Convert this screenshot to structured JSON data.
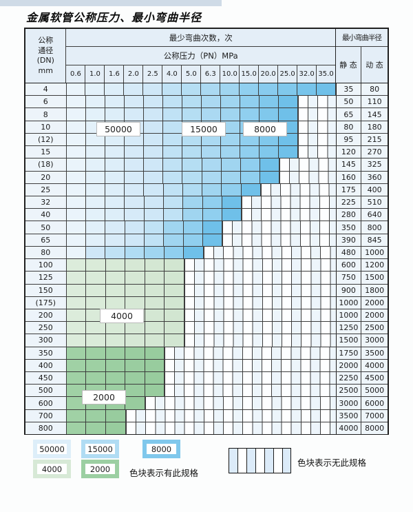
{
  "title": "金属软管公称压力、最小弯曲半径",
  "table": {
    "header": {
      "dn_lines": [
        "公称",
        "通径",
        "(DN)",
        "mm"
      ],
      "bend_cycles": "最少弯曲次数，次",
      "pressure": "公称压力（PN）MPa",
      "radius": "最小弯曲半径",
      "static": "静 态",
      "dynamic": "动 态",
      "pressure_cols": [
        "0.6",
        "1.0",
        "1.6",
        "2.0",
        "2.5",
        "4.0",
        "5.0",
        "6.3",
        "10.0",
        "15.0",
        "20.0",
        "25.0",
        "32.0",
        "35.0"
      ]
    },
    "rows": [
      {
        "dn": "4",
        "bands": [
          [
            "band_50000",
            5
          ],
          [
            "band_15000",
            4
          ],
          [
            "band_8000",
            5
          ]
        ],
        "static": "35",
        "dynamic": "80"
      },
      {
        "dn": "6",
        "bands": [
          [
            "band_50000",
            5
          ],
          [
            "band_15000",
            4
          ],
          [
            "band_8000",
            3
          ]
        ],
        "static": "50",
        "dynamic": "110"
      },
      {
        "dn": "8",
        "bands": [
          [
            "band_50000",
            5
          ],
          [
            "band_15000",
            4
          ],
          [
            "band_8000",
            3
          ]
        ],
        "static": "65",
        "dynamic": "145"
      },
      {
        "dn": "10",
        "bands": [
          [
            "band_50000",
            5
          ],
          [
            "band_15000",
            4
          ],
          [
            "band_8000",
            3
          ]
        ],
        "static": "80",
        "dynamic": "180"
      },
      {
        "dn": "(12)",
        "bands": [
          [
            "band_50000",
            5
          ],
          [
            "band_15000",
            4
          ],
          [
            "band_8000",
            3
          ]
        ],
        "static": "95",
        "dynamic": "215"
      },
      {
        "dn": "15",
        "bands": [
          [
            "band_50000",
            5
          ],
          [
            "band_15000",
            4
          ],
          [
            "band_8000",
            3
          ]
        ],
        "static": "120",
        "dynamic": "270"
      },
      {
        "dn": "(18)",
        "bands": [
          [
            "band_50000",
            5
          ],
          [
            "band_15000",
            4
          ],
          [
            "band_8000",
            2
          ]
        ],
        "static": "145",
        "dynamic": "325"
      },
      {
        "dn": "20",
        "bands": [
          [
            "band_50000",
            5
          ],
          [
            "band_15000",
            4
          ],
          [
            "band_8000",
            2
          ]
        ],
        "static": "160",
        "dynamic": "360"
      },
      {
        "dn": "25",
        "bands": [
          [
            "band_50000",
            5
          ],
          [
            "band_15000",
            3
          ],
          [
            "band_8000",
            2
          ]
        ],
        "static": "175",
        "dynamic": "400"
      },
      {
        "dn": "32",
        "bands": [
          [
            "band_50000",
            5
          ],
          [
            "band_15000",
            2
          ],
          [
            "band_8000",
            2
          ]
        ],
        "static": "225",
        "dynamic": "510"
      },
      {
        "dn": "40",
        "bands": [
          [
            "band_50000",
            5
          ],
          [
            "band_15000",
            2
          ],
          [
            "band_8000",
            2
          ]
        ],
        "static": "280",
        "dynamic": "640"
      },
      {
        "dn": "50",
        "bands": [
          [
            "band_50000",
            4
          ],
          [
            "band_15000",
            2
          ],
          [
            "band_8000",
            2
          ]
        ],
        "static": "350",
        "dynamic": "800"
      },
      {
        "dn": "65",
        "bands": [
          [
            "band_50000",
            4
          ],
          [
            "band_15000",
            2
          ],
          [
            "band_8000",
            2
          ]
        ],
        "static": "390",
        "dynamic": "845"
      },
      {
        "dn": "80",
        "bands": [
          [
            "band_50000",
            2
          ],
          [
            "band_15000",
            3
          ],
          [
            "band_8000",
            2
          ]
        ],
        "static": "480",
        "dynamic": "1000"
      },
      {
        "dn": "100",
        "bands": [
          [
            "band_4000",
            6
          ]
        ],
        "static": "600",
        "dynamic": "1200"
      },
      {
        "dn": "125",
        "bands": [
          [
            "band_4000",
            6
          ]
        ],
        "static": "750",
        "dynamic": "1500"
      },
      {
        "dn": "150",
        "bands": [
          [
            "band_4000",
            6
          ]
        ],
        "static": "900",
        "dynamic": "1800"
      },
      {
        "dn": "(175)",
        "bands": [
          [
            "band_4000",
            6
          ]
        ],
        "static": "1000",
        "dynamic": "2000"
      },
      {
        "dn": "200",
        "bands": [
          [
            "band_4000",
            6
          ]
        ],
        "static": "1000",
        "dynamic": "2000"
      },
      {
        "dn": "250",
        "bands": [
          [
            "band_4000",
            6
          ]
        ],
        "static": "1250",
        "dynamic": "2500"
      },
      {
        "dn": "300",
        "bands": [
          [
            "band_4000",
            6
          ]
        ],
        "static": "1500",
        "dynamic": "3000"
      },
      {
        "dn": "350",
        "bands": [
          [
            "band_2000",
            5
          ]
        ],
        "static": "1750",
        "dynamic": "3500"
      },
      {
        "dn": "400",
        "bands": [
          [
            "band_2000",
            5
          ]
        ],
        "static": "2000",
        "dynamic": "4000"
      },
      {
        "dn": "450",
        "bands": [
          [
            "band_2000",
            5
          ]
        ],
        "static": "2250",
        "dynamic": "4500"
      },
      {
        "dn": "500",
        "bands": [
          [
            "band_2000",
            5
          ]
        ],
        "static": "2500",
        "dynamic": "5000"
      },
      {
        "dn": "600",
        "bands": [
          [
            "band_2000",
            4
          ]
        ],
        "static": "3000",
        "dynamic": "6000"
      },
      {
        "dn": "700",
        "bands": [
          [
            "band_2000",
            3
          ]
        ],
        "static": "3500",
        "dynamic": "7000"
      },
      {
        "dn": "800",
        "bands": [
          [
            "band_2000",
            3
          ]
        ],
        "static": "4000",
        "dynamic": "8000"
      }
    ],
    "total_pressure_cols": 14
  },
  "overlay_labels": [
    "50000",
    "15000",
    "8000",
    "4000",
    "2000"
  ],
  "legend": {
    "items": [
      {
        "label": "50000",
        "band": "band_50000"
      },
      {
        "label": "15000",
        "band": "band_15000"
      },
      {
        "label": "8000",
        "band": "band_8000"
      },
      {
        "label": "4000",
        "band": "band_4000"
      },
      {
        "label": "2000",
        "band": "band_2000"
      }
    ],
    "has_spec_text": "色块表示有此规格",
    "no_spec_text": "色块表示无此规格"
  },
  "colors": {
    "band_50000": {
      "start": "#eaf4fb",
      "end": "#cfe7f7"
    },
    "band_15000": {
      "start": "#c0e2f5",
      "end": "#a0d5f0"
    },
    "band_8000": {
      "start": "#90cfef",
      "end": "#6fc0e9"
    },
    "band_4000": {
      "start": "#dcecdb",
      "end": "#d2e6d1"
    },
    "band_2000": {
      "start": "#a0d1a5",
      "end": "#98cc9e"
    },
    "hatch_tint": "#edf5fb",
    "grid_line": "#3c3c3c",
    "header_bg": "#e4eef7"
  }
}
